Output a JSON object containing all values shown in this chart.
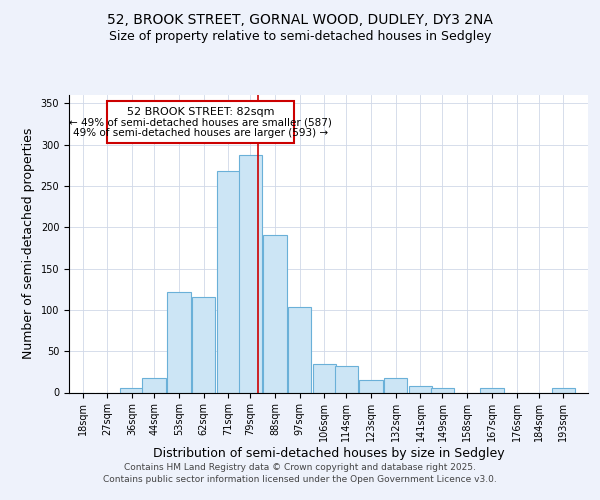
{
  "title": "52, BROOK STREET, GORNAL WOOD, DUDLEY, DY3 2NA",
  "subtitle": "Size of property relative to semi-detached houses in Sedgley",
  "xlabel": "Distribution of semi-detached houses by size in Sedgley",
  "ylabel": "Number of semi-detached properties",
  "annotation_title": "52 BROOK STREET: 82sqm",
  "annotation_line1": "← 49% of semi-detached houses are smaller (587)",
  "annotation_line2": "49% of semi-detached houses are larger (593) →",
  "property_size": 82,
  "bar_centers": [
    18,
    27,
    36,
    44,
    53,
    62,
    71,
    79,
    88,
    97,
    106,
    114,
    123,
    132,
    141,
    149,
    158,
    167,
    176,
    184,
    193
  ],
  "bar_heights": [
    0,
    0,
    5,
    18,
    122,
    115,
    268,
    287,
    190,
    103,
    35,
    32,
    15,
    17,
    8,
    5,
    0,
    5,
    0,
    0,
    5
  ],
  "bar_width": 8.5,
  "bar_color": "#cce5f5",
  "bar_edgecolor": "#6ab0d8",
  "highlight_color": "#cc0000",
  "xlim_left": 13,
  "xlim_right": 202,
  "ylim_top": 360,
  "yticks": [
    0,
    50,
    100,
    150,
    200,
    250,
    300,
    350
  ],
  "xtick_labels": [
    "18sqm",
    "27sqm",
    "36sqm",
    "44sqm",
    "53sqm",
    "62sqm",
    "71sqm",
    "79sqm",
    "88sqm",
    "97sqm",
    "106sqm",
    "114sqm",
    "123sqm",
    "132sqm",
    "141sqm",
    "149sqm",
    "158sqm",
    "167sqm",
    "176sqm",
    "184sqm",
    "193sqm"
  ],
  "xtick_positions": [
    18,
    27,
    36,
    44,
    53,
    62,
    71,
    79,
    88,
    97,
    106,
    114,
    123,
    132,
    141,
    149,
    158,
    167,
    176,
    184,
    193
  ],
  "footer_line1": "Contains HM Land Registry data © Crown copyright and database right 2025.",
  "footer_line2": "Contains public sector information licensed under the Open Government Licence v3.0.",
  "background_color": "#eef2fb",
  "plot_background": "#ffffff",
  "grid_color": "#d0d8e8",
  "title_fontsize": 10,
  "subtitle_fontsize": 9,
  "axis_label_fontsize": 9,
  "tick_fontsize": 7,
  "annotation_fontsize": 8,
  "footer_fontsize": 6.5
}
